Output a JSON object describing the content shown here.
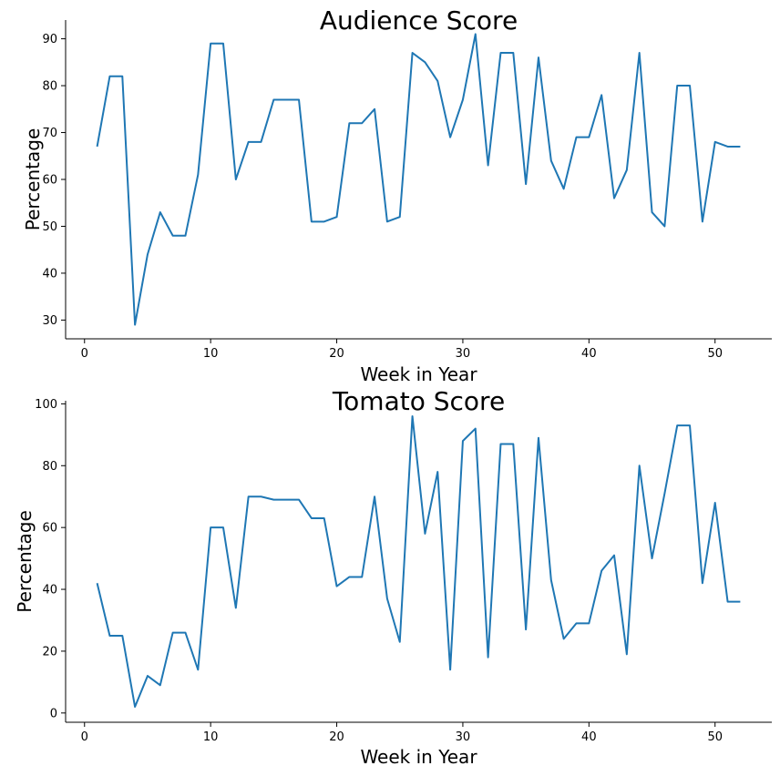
{
  "chart_data": [
    {
      "type": "line",
      "title": "Audience Score",
      "xlabel": "Week in Year",
      "ylabel": "Percentage",
      "xlim": [
        -1.5,
        54.5
      ],
      "ylim": [
        26,
        94
      ],
      "xticks": [
        0,
        10,
        20,
        30,
        40,
        50
      ],
      "yticks": [
        30,
        40,
        50,
        60,
        70,
        80,
        90
      ],
      "grid": false,
      "line_color": "#1f77b4",
      "series": [
        {
          "x": [
            1,
            2,
            3,
            4,
            5,
            6,
            7,
            8,
            9,
            10,
            11,
            12,
            13,
            14,
            15,
            16,
            17,
            18,
            19,
            20,
            21,
            22,
            23,
            24,
            25,
            26,
            27,
            28,
            29,
            30,
            31,
            32,
            33,
            34,
            35,
            36,
            37,
            38,
            39,
            40,
            41,
            42,
            43,
            44,
            45,
            46,
            47,
            48,
            49,
            50,
            51,
            52
          ],
          "values": [
            67,
            82,
            82,
            29,
            44,
            53,
            48,
            48,
            61,
            89,
            89,
            60,
            68,
            68,
            77,
            77,
            77,
            51,
            51,
            52,
            72,
            72,
            75,
            51,
            52,
            87,
            85,
            81,
            69,
            77,
            91,
            63,
            87,
            87,
            59,
            86,
            64,
            58,
            69,
            69,
            78,
            56,
            62,
            87,
            53,
            50,
            80,
            80,
            51,
            68,
            67,
            67
          ]
        }
      ]
    },
    {
      "type": "line",
      "title": "Tomato Score",
      "xlabel": "Week in Year",
      "ylabel": "Percentage",
      "xlim": [
        -1.5,
        54.5
      ],
      "ylim": [
        -3,
        101
      ],
      "xticks": [
        0,
        10,
        20,
        30,
        40,
        50
      ],
      "yticks": [
        0,
        20,
        40,
        60,
        80,
        100
      ],
      "grid": false,
      "line_color": "#1f77b4",
      "series": [
        {
          "x": [
            1,
            2,
            3,
            4,
            5,
            6,
            7,
            8,
            9,
            10,
            11,
            12,
            13,
            14,
            15,
            16,
            17,
            18,
            19,
            20,
            21,
            22,
            23,
            24,
            25,
            26,
            27,
            28,
            29,
            30,
            31,
            32,
            33,
            34,
            35,
            36,
            37,
            38,
            39,
            40,
            41,
            42,
            43,
            44,
            45,
            46,
            47,
            48,
            49,
            50,
            51,
            52
          ],
          "values": [
            42,
            25,
            25,
            2,
            12,
            9,
            26,
            26,
            14,
            60,
            60,
            34,
            70,
            70,
            69,
            69,
            69,
            63,
            63,
            41,
            44,
            44,
            70,
            37,
            23,
            96,
            58,
            78,
            14,
            88,
            92,
            18,
            87,
            87,
            27,
            89,
            43,
            24,
            29,
            29,
            46,
            51,
            19,
            80,
            50,
            71,
            93,
            93,
            42,
            68,
            36,
            36
          ]
        }
      ]
    }
  ]
}
